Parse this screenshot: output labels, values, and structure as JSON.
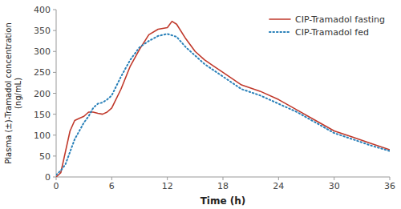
{
  "chart_data": {
    "type": "line",
    "xlabel": "Time (h)",
    "ylabel": "Plasma (±)-Tramadol concentration\n(ng/mL)",
    "xlim": [
      0,
      36
    ],
    "ylim": [
      0,
      400
    ],
    "xticks": [
      0,
      6,
      12,
      18,
      24,
      30,
      36
    ],
    "yticks": [
      0,
      50,
      100,
      150,
      200,
      250,
      300,
      350,
      400
    ],
    "grid": false,
    "legend": "upper right",
    "series": [
      {
        "name": "CIP-Tramadol fasting",
        "color": "#c0392b",
        "line_style": "solid",
        "x": [
          0,
          0.5,
          1,
          1.5,
          2,
          2.5,
          3,
          3.5,
          4,
          4.5,
          5,
          5.5,
          6,
          7,
          8,
          9,
          10,
          11,
          12,
          12.5,
          13,
          14,
          15,
          16,
          17,
          18,
          20,
          22,
          24,
          26,
          28,
          30,
          32,
          34,
          36
        ],
        "values": [
          0,
          10,
          60,
          110,
          135,
          140,
          145,
          155,
          155,
          152,
          150,
          155,
          165,
          210,
          265,
          305,
          340,
          353,
          357,
          372,
          365,
          330,
          300,
          280,
          265,
          250,
          220,
          205,
          185,
          160,
          135,
          110,
          95,
          80,
          65
        ]
      },
      {
        "name": "CIP-Tramadol fed",
        "color": "#2980b9",
        "line_style": "dotted",
        "x": [
          0,
          0.5,
          1,
          1.5,
          2,
          2.5,
          3,
          3.5,
          4,
          4.5,
          5,
          5.5,
          6,
          7,
          8,
          9,
          10,
          11,
          12,
          13,
          14,
          15,
          16,
          17,
          18,
          20,
          22,
          24,
          26,
          28,
          30,
          32,
          34,
          36
        ],
        "values": [
          5,
          15,
          30,
          60,
          90,
          110,
          130,
          145,
          165,
          175,
          178,
          185,
          195,
          240,
          280,
          310,
          325,
          337,
          342,
          335,
          310,
          290,
          270,
          255,
          240,
          210,
          195,
          175,
          155,
          130,
          105,
          90,
          75,
          62
        ]
      }
    ]
  }
}
